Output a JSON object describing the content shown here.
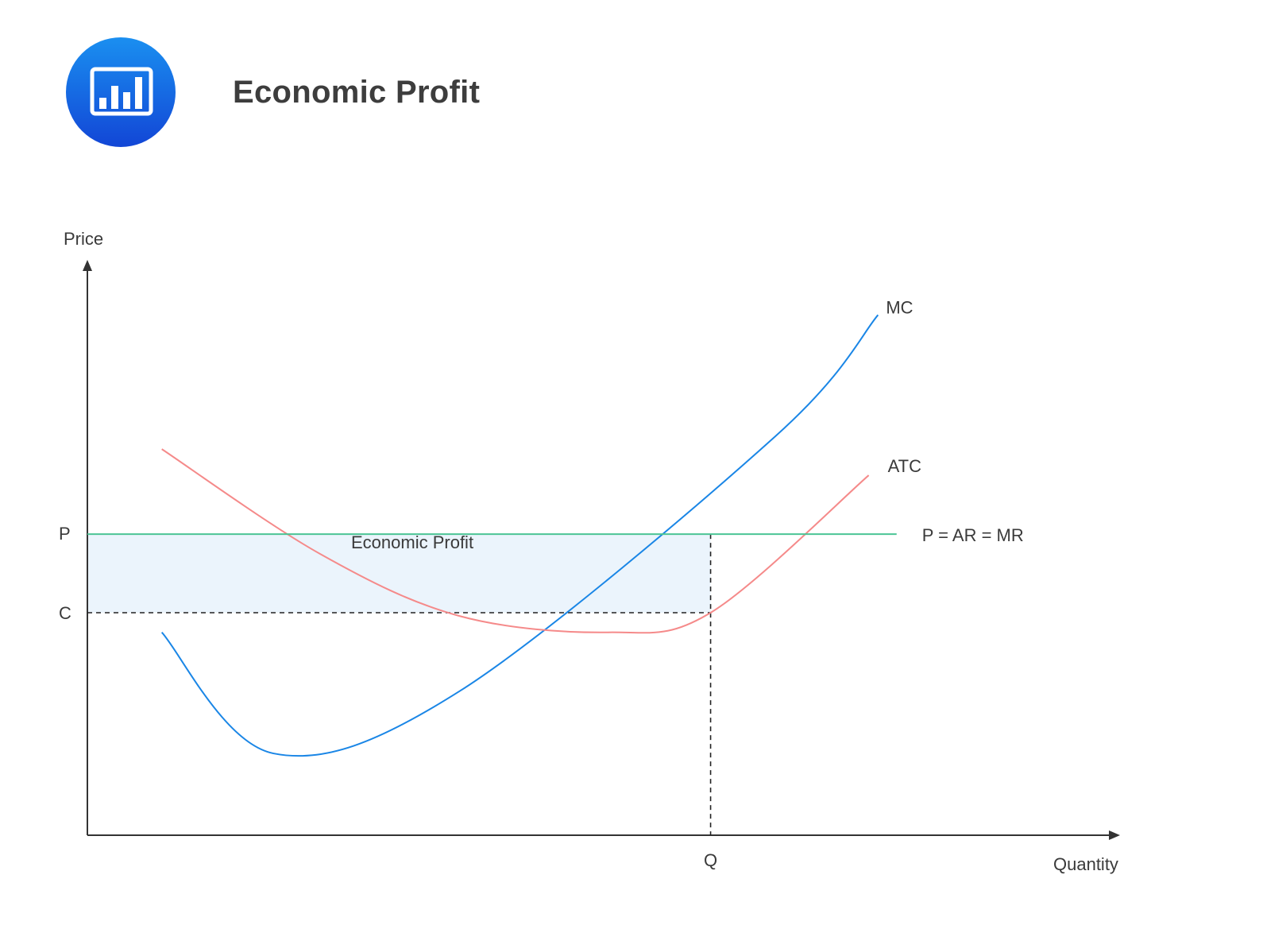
{
  "header": {
    "title": "Economic Profit",
    "icon": "bar-chart-icon",
    "icon_color": "#1a6fe6"
  },
  "chart_data": {
    "type": "line",
    "title": "Economic Profit",
    "xlabel": "Quantity",
    "ylabel": "Price",
    "grid": false,
    "x_ticks": [
      "Q"
    ],
    "y_ticks": [
      "P",
      "C"
    ],
    "region_label": "Economic Profit",
    "series": [
      {
        "name": "MC",
        "color": "#1a86e6",
        "points": [
          [
            8,
            31
          ],
          [
            20,
            12.5
          ],
          [
            40,
            22
          ],
          [
            74,
            61
          ],
          [
            85,
            79.5
          ]
        ]
      },
      {
        "name": "ATC",
        "color": "#f58a8a",
        "points": [
          [
            8,
            59
          ],
          [
            25,
            43
          ],
          [
            40,
            33.5
          ],
          [
            56,
            31
          ],
          [
            67,
            34
          ],
          [
            84,
            55
          ]
        ]
      },
      {
        "name": "P = AR = MR",
        "color": "#4cc495",
        "points": [
          [
            0,
            46
          ],
          [
            87,
            46
          ]
        ]
      }
    ],
    "reference_lines": {
      "P": 46,
      "C": 34,
      "Q": 67
    },
    "xlim": [
      0,
      100
    ],
    "ylim": [
      0,
      85
    ]
  }
}
